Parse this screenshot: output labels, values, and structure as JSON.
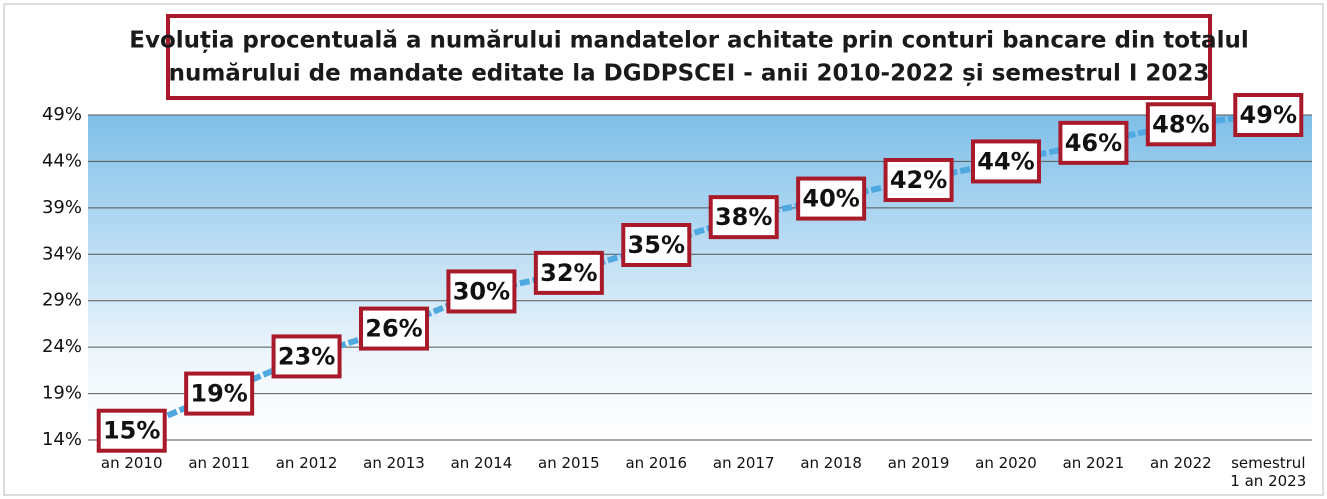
{
  "chart_data": {
    "type": "line",
    "title": [
      "Evoluția procentuală a numărului mandatelor achitate prin conturi  bancare din totalul",
      "numărului de mandate editate la DGDPSCEI - anii 2010-2022 și semestrul I 2023"
    ],
    "categories": [
      "an 2010",
      "an 2011",
      "an 2012",
      "an 2013",
      "an 2014",
      "an 2015",
      "an 2016",
      "an 2017",
      "an 2018",
      "an 2019",
      "an 2020",
      "an 2021",
      "an 2022",
      "semestrul 1 an 2023"
    ],
    "values": [
      15,
      19,
      23,
      26,
      30,
      32,
      35,
      38,
      40,
      42,
      44,
      46,
      48,
      49
    ],
    "value_labels": [
      "15%",
      "19%",
      "23%",
      "26%",
      "30%",
      "32%",
      "35%",
      "38%",
      "40%",
      "42%",
      "44%",
      "46%",
      "48%",
      "49%"
    ],
    "color": "#4fa8e0",
    "ylim": [
      14,
      49
    ],
    "yticks": [
      {
        "value": 14,
        "label": "14%"
      },
      {
        "value": 19,
        "label": "19%"
      },
      {
        "value": 24,
        "label": "24%"
      },
      {
        "value": 29,
        "label": "29%"
      },
      {
        "value": 34,
        "label": "34%"
      },
      {
        "value": 39,
        "label": "39%"
      },
      {
        "value": 44,
        "label": "44%"
      },
      {
        "value": 49,
        "label": "49%"
      }
    ],
    "grid": true
  }
}
